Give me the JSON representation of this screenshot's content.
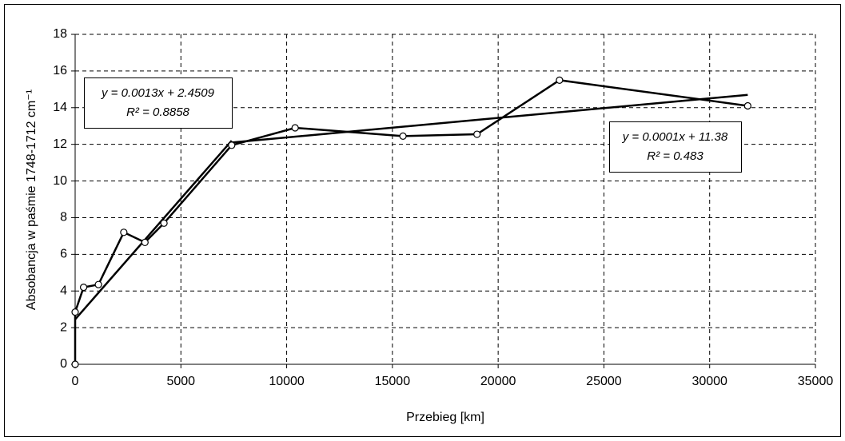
{
  "chart_data": {
    "type": "scatter",
    "x_label": "Przebieg [km]",
    "y_label": "Absobancja w paśmie 1748-1712 cm⁻¹",
    "xlim": [
      0,
      35000
    ],
    "ylim": [
      0,
      18
    ],
    "xticks": [
      0,
      5000,
      10000,
      15000,
      20000,
      25000,
      30000,
      35000
    ],
    "yticks": [
      0,
      2,
      4,
      6,
      8,
      10,
      12,
      14,
      16,
      18
    ],
    "grid": true,
    "series": [
      {
        "color": "#000000",
        "x": [
          0,
          0,
          400,
          1100,
          2300,
          3300,
          4200,
          7400,
          10400,
          15500,
          19000,
          22900,
          31800
        ],
        "values": [
          0,
          2.85,
          4.2,
          4.35,
          7.2,
          6.65,
          7.7,
          11.95,
          12.9,
          12.45,
          12.55,
          15.5,
          14.1
        ]
      }
    ],
    "trendlines": [
      {
        "x": [
          0,
          7400
        ],
        "values": [
          2.45,
          12.2
        ],
        "equation": "y = 0.0013x + 2.4509",
        "r2": "R² = 0.8858"
      },
      {
        "x": [
          7400,
          31800
        ],
        "values": [
          12.1,
          14.7
        ],
        "equation": "y = 0.0001x + 11.38",
        "r2": "R² = 0.483"
      }
    ]
  }
}
